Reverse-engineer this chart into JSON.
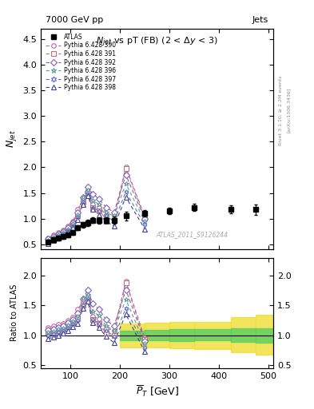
{
  "title_top": "7000 GeV pp",
  "title_top_right": "Jets",
  "main_title": "N$_{jet}$ vs pT (FB) (2 < Δy < 3)",
  "xlabel": "$\\overline{P}_T$ [GeV]",
  "ylabel_main": "$N_{jet}$",
  "ylabel_ratio": "Ratio to ATLAS",
  "watermark": "ATLAS_2011_S9126244",
  "right_label_top": "Rivet 3.1.10, ≥ 2.2M events",
  "right_label_bottom": "[arXiv:1306.3436]",
  "atlas_x": [
    55,
    65,
    75,
    85,
    95,
    105,
    115,
    125,
    135,
    145,
    158,
    172,
    188,
    212,
    250,
    300,
    350,
    425,
    475
  ],
  "atlas_y": [
    0.55,
    0.59,
    0.62,
    0.65,
    0.68,
    0.73,
    0.82,
    0.88,
    0.92,
    0.97,
    0.96,
    0.97,
    0.97,
    1.05,
    1.1,
    1.15,
    1.22,
    1.18,
    1.18
  ],
  "atlas_yerr": [
    0.04,
    0.04,
    0.04,
    0.04,
    0.04,
    0.04,
    0.05,
    0.05,
    0.06,
    0.06,
    0.06,
    0.06,
    0.07,
    0.08,
    0.06,
    0.06,
    0.07,
    0.08,
    0.1
  ],
  "p390_x": [
    55,
    65,
    75,
    85,
    95,
    105,
    115,
    125,
    135,
    145,
    158,
    172,
    188,
    212,
    250
  ],
  "p390_y": [
    0.62,
    0.68,
    0.73,
    0.78,
    0.85,
    0.95,
    1.18,
    1.38,
    1.52,
    1.28,
    1.22,
    1.08,
    1.05,
    2.0,
    1.05
  ],
  "p391_x": [
    55,
    65,
    75,
    85,
    95,
    105,
    115,
    125,
    135,
    145,
    158,
    172,
    188,
    212,
    250
  ],
  "p391_y": [
    0.58,
    0.62,
    0.67,
    0.72,
    0.78,
    0.88,
    1.05,
    1.32,
    1.45,
    1.22,
    1.15,
    1.0,
    0.96,
    1.98,
    1.02
  ],
  "p392_x": [
    55,
    65,
    75,
    85,
    95,
    105,
    115,
    125,
    135,
    145,
    158,
    172,
    188,
    212,
    250
  ],
  "p392_y": [
    0.6,
    0.65,
    0.7,
    0.75,
    0.82,
    0.92,
    1.12,
    1.42,
    1.62,
    1.48,
    1.38,
    1.22,
    1.12,
    1.85,
    1.0
  ],
  "p396_x": [
    55,
    65,
    75,
    85,
    95,
    105,
    115,
    125,
    135,
    145,
    158,
    172,
    188,
    212,
    250
  ],
  "p396_y": [
    0.58,
    0.63,
    0.68,
    0.73,
    0.8,
    0.9,
    1.08,
    1.42,
    1.55,
    1.35,
    1.28,
    1.12,
    1.05,
    1.68,
    0.95
  ],
  "p397_x": [
    55,
    65,
    75,
    85,
    95,
    105,
    115,
    125,
    135,
    145,
    158,
    172,
    188,
    212,
    250
  ],
  "p397_y": [
    0.55,
    0.6,
    0.65,
    0.7,
    0.76,
    0.86,
    1.02,
    1.32,
    1.48,
    1.22,
    1.15,
    1.05,
    0.95,
    1.52,
    0.88
  ],
  "p398_x": [
    55,
    65,
    75,
    85,
    95,
    105,
    115,
    125,
    135,
    145,
    158,
    172,
    188,
    212,
    250
  ],
  "p398_y": [
    0.52,
    0.57,
    0.62,
    0.67,
    0.73,
    0.83,
    0.98,
    1.28,
    1.45,
    1.18,
    1.08,
    0.95,
    0.85,
    1.42,
    0.8
  ],
  "color_390": "#c0659a",
  "color_391": "#c07080",
  "color_392": "#8060b0",
  "color_396": "#60a0a0",
  "color_397": "#6070c0",
  "color_398": "#404090",
  "atlas_color": "#000000",
  "xlim": [
    40,
    510
  ],
  "ylim_main": [
    0.4,
    4.7
  ],
  "ylim_ratio": [
    0.45,
    2.3
  ],
  "band_edges": [
    200,
    250,
    300,
    350,
    425,
    475,
    510
  ],
  "inner_lows": [
    0.92,
    0.91,
    0.9,
    0.91,
    0.89,
    0.88
  ],
  "inner_highs": [
    1.08,
    1.09,
    1.1,
    1.1,
    1.12,
    1.12
  ],
  "outer_lows": [
    0.8,
    0.79,
    0.78,
    0.77,
    0.72,
    0.68
  ],
  "outer_highs": [
    1.2,
    1.21,
    1.22,
    1.23,
    1.3,
    1.35
  ]
}
